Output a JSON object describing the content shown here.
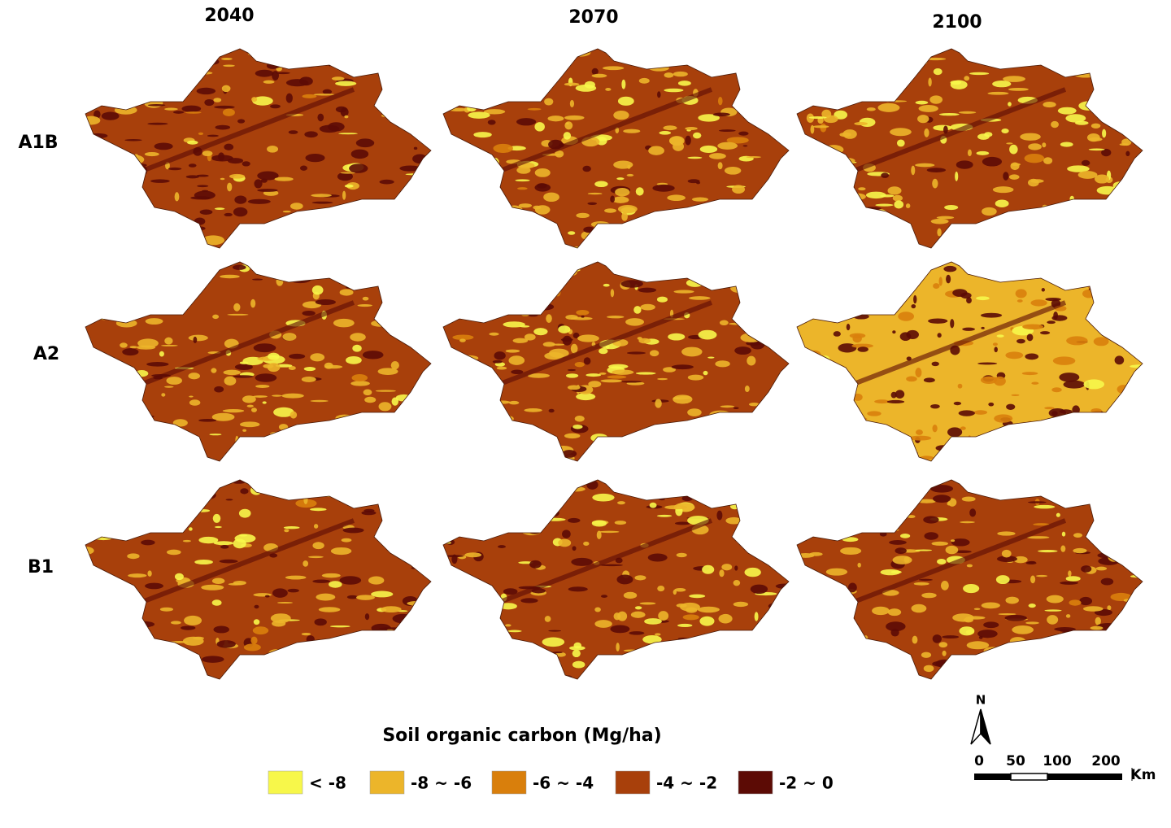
{
  "columns": [
    "2040",
    "2070",
    "2100"
  ],
  "rows": [
    "A1B",
    "A2",
    "B1"
  ],
  "legend": {
    "title": "Soil organic carbon (Mg/ha)",
    "items": [
      {
        "label": "< -8",
        "color": "#f7f74a"
      },
      {
        "label": "-8 ~ -6",
        "color": "#ecb52a"
      },
      {
        "label": "-6 ~ -4",
        "color": "#d97f0c"
      },
      {
        "label": "-4 ~ -2",
        "color": "#a8400b"
      },
      {
        "label": "-2 ~ 0",
        "color": "#5c0b05"
      }
    ]
  },
  "scale_bar": {
    "north": "N",
    "ticks": [
      "0",
      "50",
      "100",
      "200"
    ],
    "unit": "Km"
  }
}
